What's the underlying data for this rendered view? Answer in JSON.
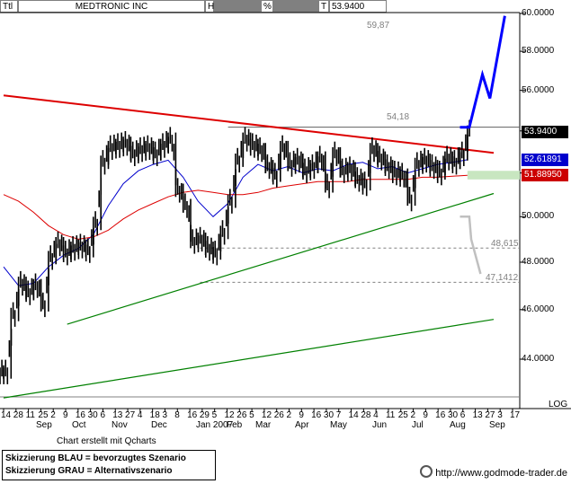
{
  "header": {
    "short_label": "Ttl",
    "title": "MEDTRONIC INC",
    "h_label": "H",
    "pct_label": "%",
    "t_label": "T",
    "price": "53.9400"
  },
  "colors": {
    "price_bars": "#000000",
    "resistance": "#dd0000",
    "support": "#008000",
    "ma_blue": "#0000cc",
    "ma_red": "#dd0000",
    "scenario_blue": "#0000ff",
    "scenario_gray": "#c0c0c0",
    "flag_blue": "#0000cc",
    "flag_red": "#cc0000",
    "zone_green": "#c8e6c0"
  },
  "chart_data": {
    "type": "line",
    "title": "MEDTRONIC INC",
    "y_scale": "log",
    "y_label": "LOG",
    "ylim": [
      42.3,
      61.0
    ],
    "y_ticks": [
      "60.0000",
      "58.0000",
      "56.0000",
      "54.0000",
      "52.0000",
      "50.0000",
      "48.0000",
      "46.0000",
      "44.0000"
    ],
    "x_ticks": [
      "14",
      "28",
      "11",
      "25",
      "2",
      "9",
      "16",
      "30",
      "6",
      "13",
      "27",
      "4",
      "18",
      "3",
      "8",
      "16",
      "29",
      "5",
      "12",
      "26",
      "5",
      "12",
      "26",
      "2",
      "9",
      "16",
      "30",
      "7",
      "14",
      "28",
      "4",
      "11",
      "25",
      "2",
      "9",
      "16",
      "30",
      "6",
      "13",
      "27",
      "3",
      "17"
    ],
    "x_months": [
      "Sep",
      "Oct",
      "Nov",
      "Dec",
      "Jan 2007",
      "Feb",
      "Mar",
      "Apr",
      "May",
      "Jun",
      "Jul",
      "Aug",
      "Sep"
    ],
    "annotations": [
      "59,87",
      "54,18",
      "48,615",
      "47,1412"
    ],
    "last_price_flags": [
      {
        "label": "53.9400",
        "value": 53.94,
        "color": "#000000"
      },
      {
        "label": "52.61891",
        "value": 52.61891,
        "color": "#0000cc"
      },
      {
        "label": "51.88950",
        "value": 51.8895,
        "color": "#cc0000"
      }
    ],
    "series": [
      {
        "name": "",
        "kind": "price",
        "x": [
          0,
          4,
          8,
          12,
          16,
          20,
          24,
          28,
          32,
          36,
          40,
          44,
          48,
          52,
          56,
          60,
          64,
          68,
          72,
          76,
          80,
          84,
          88,
          92,
          96,
          100,
          104,
          108,
          112,
          116,
          120,
          124,
          128,
          132,
          136,
          140,
          144,
          148,
          152,
          156,
          160,
          164,
          168,
          172,
          176,
          180,
          184,
          188,
          192,
          196,
          200,
          204,
          208,
          212,
          216,
          220,
          224,
          228,
          232,
          236,
          240,
          244,
          248
        ],
        "y": [
          43.5,
          45.8,
          47.1,
          46.7,
          47.0,
          46.2,
          48.2,
          48.8,
          48.4,
          48.6,
          48.7,
          48.5,
          49.7,
          52.5,
          53.2,
          53.3,
          53.4,
          52.9,
          53.1,
          53.2,
          52.9,
          53.3,
          53.6,
          51.2,
          50.5,
          48.9,
          49.0,
          48.6,
          48.4,
          49.3,
          50.7,
          52.6,
          53.6,
          53.3,
          53.1,
          52.3,
          51.9,
          53.2,
          52.4,
          52.6,
          52.1,
          52.3,
          52.7,
          51.4,
          52.9,
          52.1,
          52.2,
          51.7,
          51.5,
          53.1,
          52.7,
          52.3,
          52.0,
          51.9,
          50.8,
          52.4,
          52.6,
          52.3,
          52.0,
          52.7,
          52.5,
          52.9,
          53.94
        ]
      },
      {
        "name": "",
        "kind": "moving_average",
        "x": [
          0,
          8,
          16,
          24,
          32,
          40,
          48,
          56,
          64,
          72,
          80,
          88,
          96,
          104,
          112,
          120,
          128,
          136,
          144,
          152,
          160,
          168,
          176,
          184,
          192,
          200,
          208,
          216,
          224,
          232,
          240,
          248
        ],
        "y": [
          47.8,
          47.0,
          47.1,
          47.8,
          48.3,
          48.6,
          49.2,
          50.5,
          51.5,
          52.1,
          52.4,
          52.6,
          51.8,
          50.7,
          50.0,
          50.6,
          51.8,
          52.4,
          52.1,
          52.3,
          52.0,
          52.2,
          52.1,
          52.4,
          52.5,
          52.2,
          52.3,
          52.0,
          52.2,
          52.4,
          52.5,
          52.62
        ]
      },
      {
        "name": "",
        "kind": "moving_average",
        "x": [
          0,
          8,
          16,
          24,
          32,
          40,
          48,
          56,
          64,
          72,
          80,
          88,
          96,
          104,
          112,
          120,
          128,
          136,
          144,
          152,
          160,
          168,
          176,
          184,
          192,
          200,
          208,
          216,
          224,
          232,
          240,
          248
        ],
        "y": [
          51.0,
          50.7,
          50.2,
          49.6,
          49.2,
          49.0,
          49.1,
          49.4,
          49.9,
          50.3,
          50.6,
          50.9,
          51.1,
          51.2,
          51.1,
          51.0,
          51.0,
          51.1,
          51.3,
          51.4,
          51.5,
          51.6,
          51.6,
          51.6,
          51.7,
          51.7,
          51.7,
          51.7,
          51.8,
          51.8,
          51.85,
          51.89
        ]
      },
      {
        "name": "",
        "kind": "trendline",
        "x": [
          0,
          262
        ],
        "y": [
          55.75,
          52.95
        ]
      },
      {
        "name": "",
        "kind": "trendline",
        "x": [
          34,
          262
        ],
        "y": [
          45.4,
          51.05
        ]
      },
      {
        "name": "",
        "kind": "trendline",
        "x": [
          0,
          262
        ],
        "y": [
          42.5,
          45.6
        ]
      },
      {
        "name": "",
        "kind": "scenario",
        "x": [
          244,
          249,
          256,
          260,
          268
        ],
        "y": [
          54.18,
          54.18,
          56.8,
          55.6,
          59.87
        ]
      },
      {
        "name": "",
        "kind": "scenario",
        "x": [
          244,
          249,
          250,
          255
        ],
        "y": [
          50.0,
          50.0,
          49.0,
          47.5
        ]
      }
    ],
    "horizontal_levels": [
      {
        "label": "54,18",
        "value": 54.18
      },
      {
        "label": "48,615",
        "value": 48.615
      },
      {
        "label": "47,1412",
        "value": 47.1412
      }
    ],
    "zone": {
      "low": 51.7,
      "high": 52.1
    },
    "grid": false
  },
  "footer": {
    "created_with": "Chart erstellt mit Qcharts",
    "legend_blue": "Skizzierung BLAU = bevorzugtes Szenario",
    "legend_gray": "Skizzierung GRAU = Alternativszenario",
    "website": "http://www.godmode-trader.de",
    "scale_mode": "LOG"
  }
}
